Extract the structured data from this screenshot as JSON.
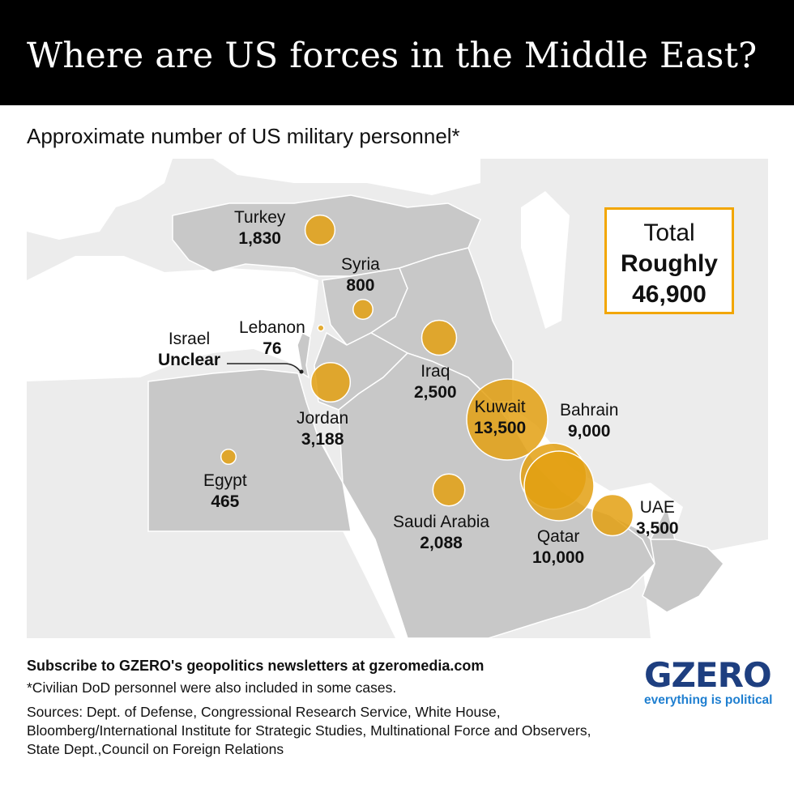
{
  "header": {
    "title": "Where are US forces in the Middle East?"
  },
  "subtitle": "Approximate number of US military personnel*",
  "total": {
    "line1": "Total",
    "line2": "Roughly",
    "line3": "46,900"
  },
  "countries": {
    "turkey": {
      "name": "Turkey",
      "value": "1,830",
      "personnel": 1830
    },
    "syria": {
      "name": "Syria",
      "value": "800",
      "personnel": 800
    },
    "lebanon": {
      "name": "Lebanon",
      "value": "76",
      "personnel": 76
    },
    "israel": {
      "name": "Israel",
      "value": "Unclear"
    },
    "jordan": {
      "name": "Jordan",
      "value": "3,188",
      "personnel": 3188
    },
    "iraq": {
      "name": "Iraq",
      "value": "2,500",
      "personnel": 2500
    },
    "kuwait": {
      "name": "Kuwait",
      "value": "13,500",
      "personnel": 13500
    },
    "bahrain": {
      "name": "Bahrain",
      "value": "9,000",
      "personnel": 9000
    },
    "qatar": {
      "name": "Qatar",
      "value": "10,000",
      "personnel": 10000
    },
    "uae": {
      "name": "UAE",
      "value": "3,500",
      "personnel": 3500
    },
    "saudi": {
      "name": "Saudi Arabia",
      "value": "2,088",
      "personnel": 2088
    },
    "egypt": {
      "name": "Egypt",
      "value": "465",
      "personnel": 465
    }
  },
  "colors": {
    "bubble": "#e3a012",
    "bubble_stroke": "#ffffff",
    "highlight_land": "#c8c8c8",
    "other_land": "#e4e4e4",
    "sea": "#ffffff",
    "total_border": "#f2a600",
    "brand": "#1e3f80",
    "brand_tagline": "#1f7fd0"
  },
  "footer": {
    "subscribe": "Subscribe to GZERO's geopolitics newsletters at gzeromedia.com",
    "note": "*Civilian DoD personnel were also included in some cases.",
    "sources": "Sources: Dept. of Defense, Congressional Research Service, White House, Bloomberg/International Institute for Strategic Studies, Multinational Force and Observers, State Dept.,Council on Foreign Relations"
  },
  "logo": {
    "wordmark": "GZERO",
    "tagline": "everything is political"
  }
}
